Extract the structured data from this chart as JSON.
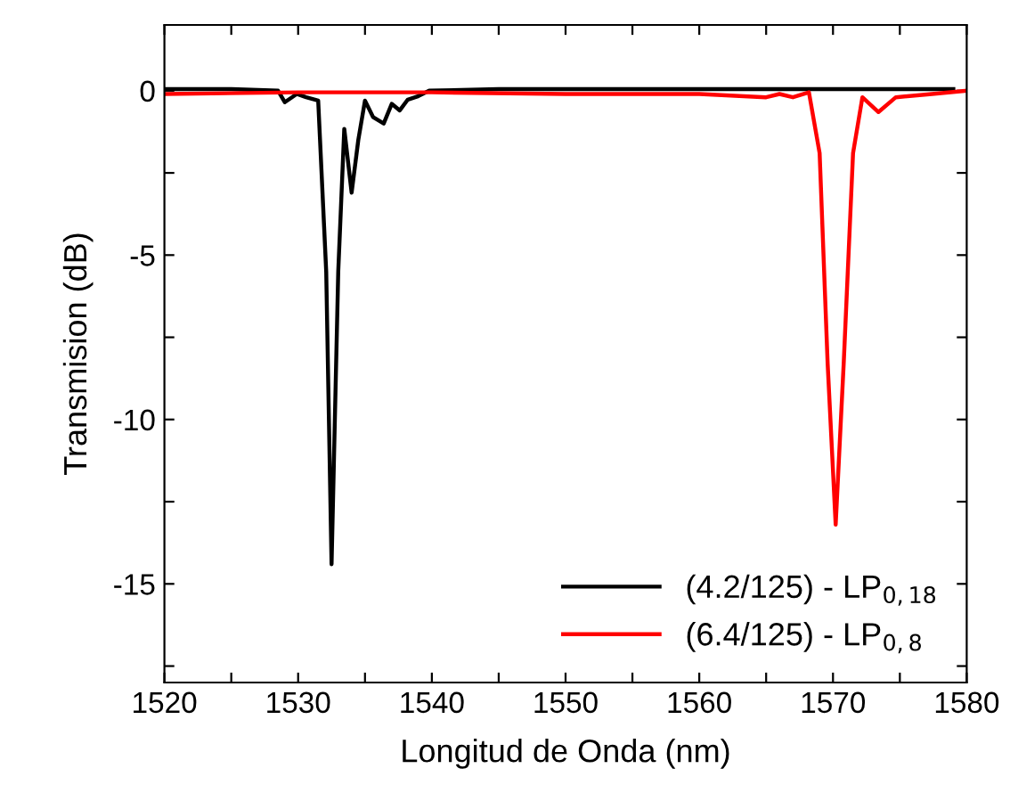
{
  "chart_data": {
    "type": "line",
    "xlabel": "Longitud de Onda (nm)",
    "ylabel": "Transmision (dB)",
    "xlim": [
      1520,
      1580
    ],
    "ylim": [
      -18,
      2
    ],
    "xticks": [
      1520,
      {
        "value": 1525,
        "label": null
      },
      1530,
      {
        "value": 1535,
        "label": null
      },
      1540,
      {
        "value": 1545,
        "label": null
      },
      1550,
      {
        "value": 1555,
        "label": null
      },
      1560,
      {
        "value": 1565,
        "label": null
      },
      1570,
      {
        "value": 1575,
        "label": null
      },
      1580
    ],
    "yticks": [
      {
        "value": -17.5,
        "label": null
      },
      -15,
      {
        "value": -12.5,
        "label": null
      },
      -10,
      {
        "value": -7.5,
        "label": null
      },
      -5,
      {
        "value": -2.5,
        "label": null
      },
      0
    ],
    "grid": false,
    "legend": "bottom right",
    "marker": "none",
    "line_style": "solid",
    "series": [
      {
        "name": "(4.2/125) - LP$_{0,18}$",
        "color": "#000000",
        "x": [
          1520,
          1525,
          1528.5,
          1529.0,
          1529.9,
          1530.6,
          1531.5,
          1532.1,
          1532.5,
          1533.0,
          1533.45,
          1534.0,
          1534.5,
          1535.0,
          1535.6,
          1536.4,
          1537.0,
          1537.6,
          1538.2,
          1538.9,
          1539.8,
          1545,
          1550,
          1560,
          1570,
          1579
        ],
        "values": [
          0.05,
          0.05,
          0,
          -0.35,
          -0.1,
          -0.2,
          -0.3,
          -5.5,
          -14.4,
          -5.5,
          -1.16,
          -3.1,
          -1.5,
          -0.3,
          -0.8,
          -1.0,
          -0.4,
          -0.6,
          -0.27,
          -0.18,
          0,
          0.05,
          0.05,
          0.05,
          0.05,
          0.05
        ]
      },
      {
        "name": "(6.4/125) - LP$_{0,8}$",
        "color": "#ff0000",
        "x": [
          1520,
          1530,
          1540,
          1550,
          1560,
          1565.0,
          1566.0,
          1567.0,
          1568.2,
          1569.0,
          1569.6,
          1570.2,
          1570.8,
          1571.5,
          1572.2,
          1573.4,
          1574.7,
          1577.4,
          1580
        ],
        "values": [
          -0.1,
          -0.05,
          -0.05,
          -0.1,
          -0.1,
          -0.2,
          -0.1,
          -0.2,
          -0.05,
          -1.9,
          -8.3,
          -13.2,
          -8.3,
          -1.9,
          -0.2,
          -0.65,
          -0.2,
          -0.1,
          0
        ]
      }
    ]
  }
}
